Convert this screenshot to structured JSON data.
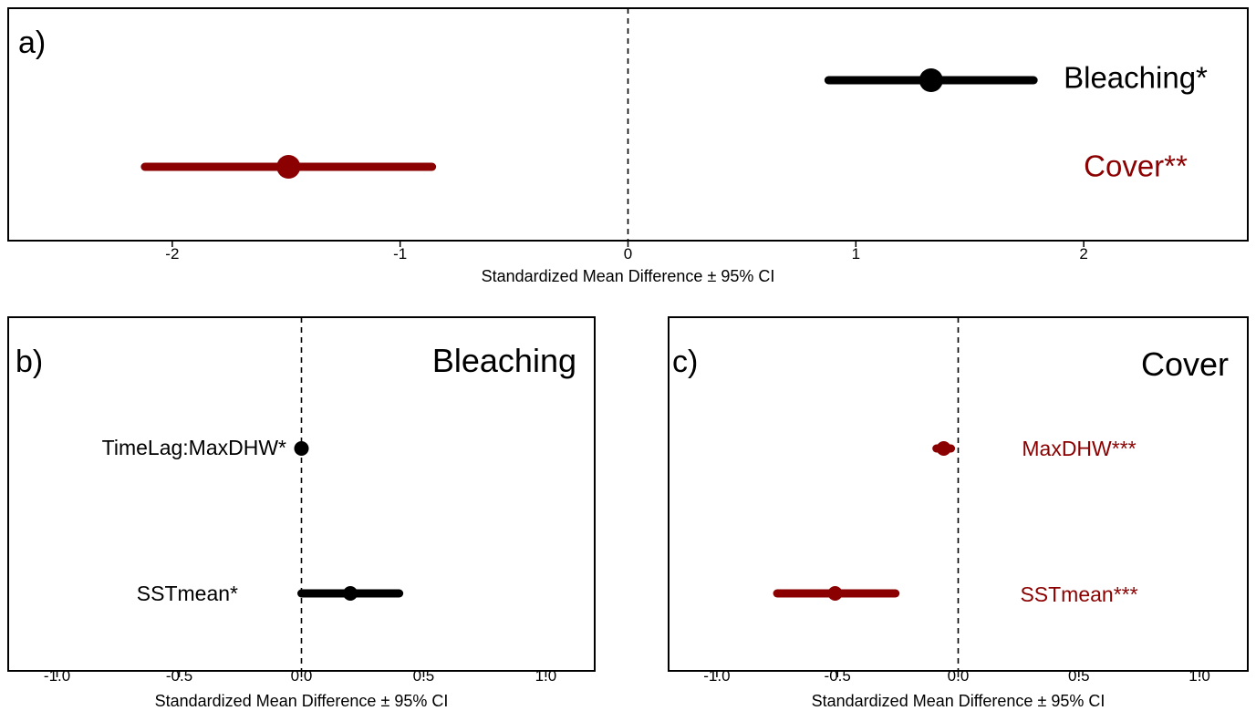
{
  "colors": {
    "black": "#000000",
    "red": "#8b0000"
  },
  "chart_data": [
    {
      "panel": "a)",
      "type": "scatter",
      "subtype": "forest-plot",
      "xlabel": "Standardized Mean Difference ± 95% CI",
      "xlim": [
        -2.72,
        2.72
      ],
      "ticks": [
        -2,
        -1,
        0,
        1,
        2
      ],
      "tick_labels": [
        "-2",
        "-1",
        "0",
        "1",
        "2"
      ],
      "reference_line": 0,
      "series": [
        {
          "label": "Bleaching*",
          "estimate": 1.33,
          "ci_low": 0.88,
          "ci_high": 1.78,
          "color": "#000000"
        },
        {
          "label": "Cover**",
          "estimate": -1.49,
          "ci_low": -2.12,
          "ci_high": -0.86,
          "color": "#8b0000"
        }
      ]
    },
    {
      "panel": "b)",
      "title": "Bleaching",
      "type": "scatter",
      "subtype": "forest-plot",
      "xlabel": "Standardized Mean Difference ± 95% CI",
      "xlim": [
        -1.2,
        1.2
      ],
      "ticks": [
        -1.0,
        -0.5,
        0.0,
        0.5,
        1.0
      ],
      "tick_labels": [
        "-1.0",
        "-0.5",
        "0.0",
        "0.5",
        "1.0"
      ],
      "reference_line": 0,
      "series": [
        {
          "label": "TimeLag:MaxDHW*",
          "estimate": 0.0,
          "ci_low": -0.01,
          "ci_high": 0.01,
          "color": "#000000"
        },
        {
          "label": "SSTmean*",
          "estimate": 0.2,
          "ci_low": 0.0,
          "ci_high": 0.4,
          "color": "#000000"
        }
      ]
    },
    {
      "panel": "c)",
      "title": "Cover",
      "type": "scatter",
      "subtype": "forest-plot",
      "xlabel": "Standardized Mean Difference ± 95% CI",
      "xlim": [
        -1.2,
        1.2
      ],
      "ticks": [
        -1.0,
        -0.5,
        0.0,
        0.5,
        1.0
      ],
      "tick_labels": [
        "-1.0",
        "-0.5",
        "0.0",
        "0.5",
        "1.0"
      ],
      "reference_line": 0,
      "series": [
        {
          "label": "MaxDHW***",
          "estimate": -0.06,
          "ci_low": -0.09,
          "ci_high": -0.03,
          "color": "#8b0000"
        },
        {
          "label": "SSTmean***",
          "estimate": -0.51,
          "ci_low": -0.75,
          "ci_high": -0.26,
          "color": "#8b0000"
        }
      ]
    }
  ]
}
